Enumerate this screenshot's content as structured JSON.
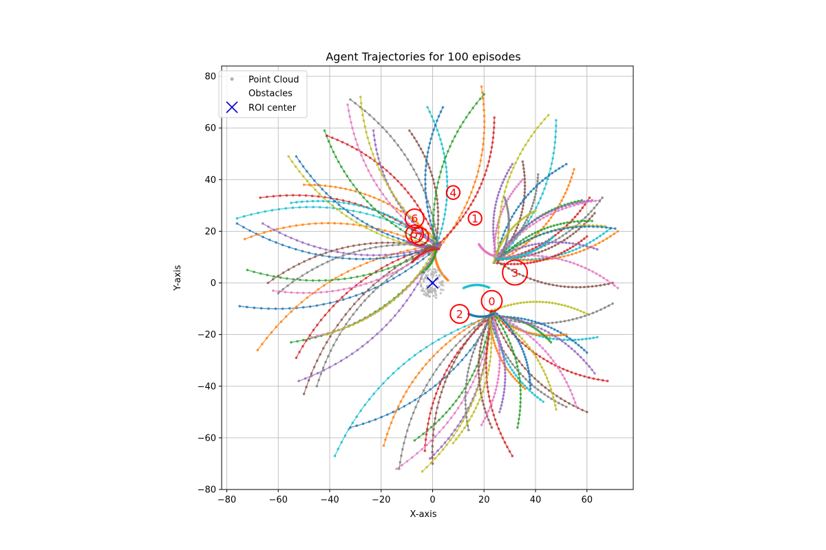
{
  "chart_data": {
    "type": "scatter",
    "title": "Agent Trajectories for 100 episodes",
    "xlabel": "X-axis",
    "ylabel": "Y-axis",
    "xlim": [
      -82,
      78
    ],
    "ylim": [
      -80,
      84
    ],
    "xticks": [
      -80,
      -60,
      -40,
      -20,
      0,
      20,
      40,
      60
    ],
    "yticks": [
      -80,
      -60,
      -40,
      -20,
      0,
      20,
      40,
      60,
      80
    ],
    "grid": true,
    "legend": {
      "placement": "top-left",
      "entries": [
        {
          "label": "Point Cloud",
          "marker": "dot",
          "color": "#b0b0b0"
        },
        {
          "label": "Obstacles",
          "marker": "none",
          "color": "#ff0000"
        },
        {
          "label": "ROI center",
          "marker": "x",
          "color": "#0000cc"
        }
      ]
    },
    "roi_center": [
      0,
      0
    ],
    "obstacles": [
      {
        "label": "0",
        "x": 23,
        "y": -7,
        "r": 4.0
      },
      {
        "label": "1",
        "x": 16.5,
        "y": 25,
        "r": 2.6
      },
      {
        "label": "2",
        "x": 10.5,
        "y": -12,
        "r": 3.6
      },
      {
        "label": "3",
        "x": 32,
        "y": 4,
        "r": 4.8
      },
      {
        "label": "4",
        "x": 8,
        "y": 35,
        "r": 2.6
      },
      {
        "label": "5",
        "x": -7,
        "y": 19,
        "r": 3.4
      },
      {
        "label": "6",
        "x": -7,
        "y": 25,
        "r": 3.6
      },
      {
        "label": "7",
        "x": -5,
        "y": 18,
        "r": 3.4
      }
    ],
    "point_cloud": {
      "center": [
        0,
        0
      ],
      "spread": [
        5,
        6
      ]
    },
    "convergence_hubs": [
      [
        2,
        14
      ],
      [
        25,
        9
      ],
      [
        23,
        -12
      ],
      [
        22,
        -3
      ]
    ],
    "trajectory_starts": [
      [
        -75,
        -9
      ],
      [
        -68,
        -26
      ],
      [
        -55,
        -23
      ],
      [
        -53,
        -29
      ],
      [
        -52,
        -38
      ],
      [
        -50,
        -43
      ],
      [
        -47,
        -21
      ],
      [
        -45,
        -40
      ],
      [
        -42,
        -20
      ],
      [
        -38,
        -67
      ],
      [
        -32,
        -56
      ],
      [
        -19,
        -63
      ],
      [
        -7,
        -61
      ],
      [
        -3,
        -65
      ],
      [
        -1,
        -68
      ],
      [
        0,
        -70
      ],
      [
        -14,
        -72
      ],
      [
        -13,
        -72
      ],
      [
        -4,
        -73
      ],
      [
        -76,
        25
      ],
      [
        -76,
        23
      ],
      [
        -73,
        17
      ],
      [
        -72,
        5
      ],
      [
        -67,
        33
      ],
      [
        -66,
        23
      ],
      [
        -64,
        0
      ],
      [
        -62,
        -3
      ],
      [
        -60,
        -4
      ],
      [
        -56,
        49
      ],
      [
        -55,
        31
      ],
      [
        -53,
        49
      ],
      [
        -50,
        38
      ],
      [
        -42,
        59
      ],
      [
        -41,
        57
      ],
      [
        -23,
        59
      ],
      [
        -9,
        59
      ],
      [
        -33,
        69
      ],
      [
        -32,
        71
      ],
      [
        -28,
        72
      ],
      [
        -2,
        68
      ],
      [
        4,
        68
      ],
      [
        19,
        76
      ],
      [
        20,
        73
      ],
      [
        24,
        64
      ],
      [
        31,
        46
      ],
      [
        35,
        47
      ],
      [
        35,
        40
      ],
      [
        41,
        42
      ],
      [
        45,
        65
      ],
      [
        48,
        63
      ],
      [
        52,
        46
      ],
      [
        55,
        44
      ],
      [
        58,
        32
      ],
      [
        61,
        33
      ],
      [
        62,
        32
      ],
      [
        63,
        27
      ],
      [
        65,
        32
      ],
      [
        66,
        33
      ],
      [
        67,
        22
      ],
      [
        69,
        21
      ],
      [
        71,
        21
      ],
      [
        72,
        20
      ],
      [
        62,
        24
      ],
      [
        60,
        18
      ],
      [
        64,
        13
      ],
      [
        70,
        0
      ],
      [
        72,
        -2
      ],
      [
        70,
        -8
      ],
      [
        60,
        -12
      ],
      [
        64,
        -21
      ],
      [
        60,
        -27
      ],
      [
        52,
        -20
      ],
      [
        46,
        -23
      ],
      [
        68,
        -38
      ],
      [
        63,
        -35
      ],
      [
        60,
        -50
      ],
      [
        56,
        -48
      ],
      [
        52,
        -48
      ],
      [
        48,
        -49
      ],
      [
        43,
        -46
      ],
      [
        38,
        -41
      ],
      [
        36,
        -41
      ],
      [
        33,
        -56
      ],
      [
        31,
        -67
      ],
      [
        26,
        -50
      ],
      [
        23,
        -56
      ],
      [
        19,
        -55
      ],
      [
        14,
        -57
      ],
      [
        8,
        -62
      ],
      [
        12,
        -2
      ],
      [
        14,
        -12
      ],
      [
        6,
        1
      ],
      [
        -4,
        4
      ],
      [
        -8,
        8
      ],
      [
        -10,
        16
      ],
      [
        -3,
        13
      ],
      [
        18,
        15
      ],
      [
        28,
        33
      ],
      [
        40,
        28
      ],
      [
        47,
        18
      ]
    ]
  }
}
